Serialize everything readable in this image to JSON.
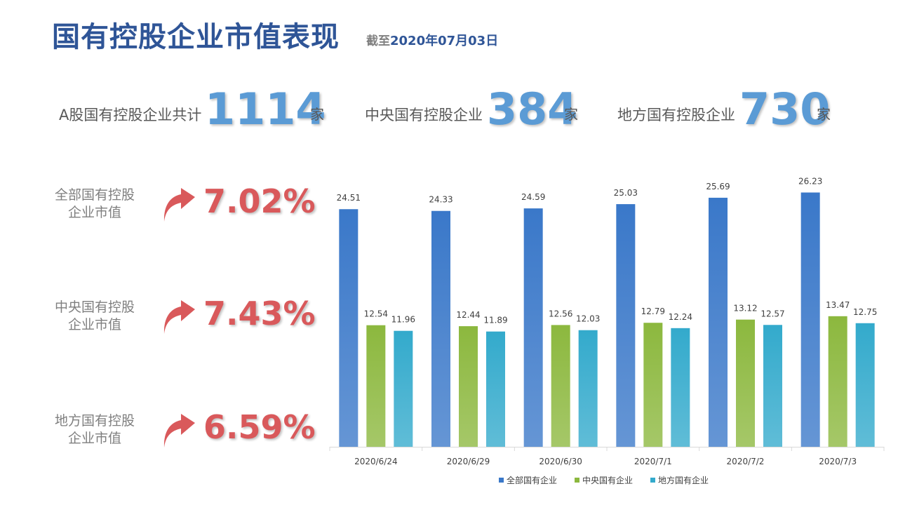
{
  "header": {
    "title": "国有控股企业市值表现",
    "subtitle_prefix": "截至",
    "subtitle_date": "2020年07月03日"
  },
  "stats": [
    {
      "label": "A股国有控股企业共计",
      "value": "1114",
      "unit": "家"
    },
    {
      "label": "中央国有控股企业",
      "value": "384",
      "unit": "家"
    },
    {
      "label": "地方国有控股企业",
      "value": "730",
      "unit": "家"
    }
  ],
  "metrics": [
    {
      "label_line1": "全部国有控股",
      "label_line2": "企业市值",
      "value": "7.02%",
      "icon": "up-arrow-icon"
    },
    {
      "label_line1": "中央国有控股",
      "label_line2": "企业市值",
      "value": "7.43%",
      "icon": "up-arrow-icon"
    },
    {
      "label_line1": "地方国有控股",
      "label_line2": "企业市值",
      "value": "6.59%",
      "icon": "up-arrow-icon"
    }
  ],
  "colors": {
    "title": "#2f5597",
    "stat_number": "#5b9bd5",
    "metric_value": "#d9595b",
    "arrow": "#d9595b"
  },
  "chart_data": {
    "type": "bar",
    "categories": [
      "2020/6/24",
      "2020/6/29",
      "2020/6/30",
      "2020/7/1",
      "2020/7/2",
      "2020/7/3"
    ],
    "series": [
      {
        "name": "全部国有企业",
        "color": "#3a78c9",
        "values": [
          24.51,
          24.33,
          24.59,
          25.03,
          25.69,
          26.23
        ],
        "labels": [
          "24.51",
          "24.33",
          "24.59",
          "25.03",
          "25.69",
          "26.23"
        ]
      },
      {
        "name": "中央国有企业",
        "color": "#8cb83e",
        "values": [
          12.54,
          12.44,
          12.56,
          12.79,
          13.12,
          13.47
        ],
        "labels": [
          "12.54",
          "12.44",
          "12.56",
          "12.79",
          "13.12",
          "13.47"
        ]
      },
      {
        "name": "地方国有企业",
        "color": "#33aacc",
        "values": [
          11.96,
          11.89,
          12.03,
          12.24,
          12.57,
          12.75
        ],
        "labels": [
          "11.96",
          "11.89",
          "12.03",
          "12.24",
          "12.57",
          "12.75"
        ]
      }
    ],
    "ylim": [
      0,
      28
    ],
    "grid": false,
    "legend": "bottom"
  }
}
